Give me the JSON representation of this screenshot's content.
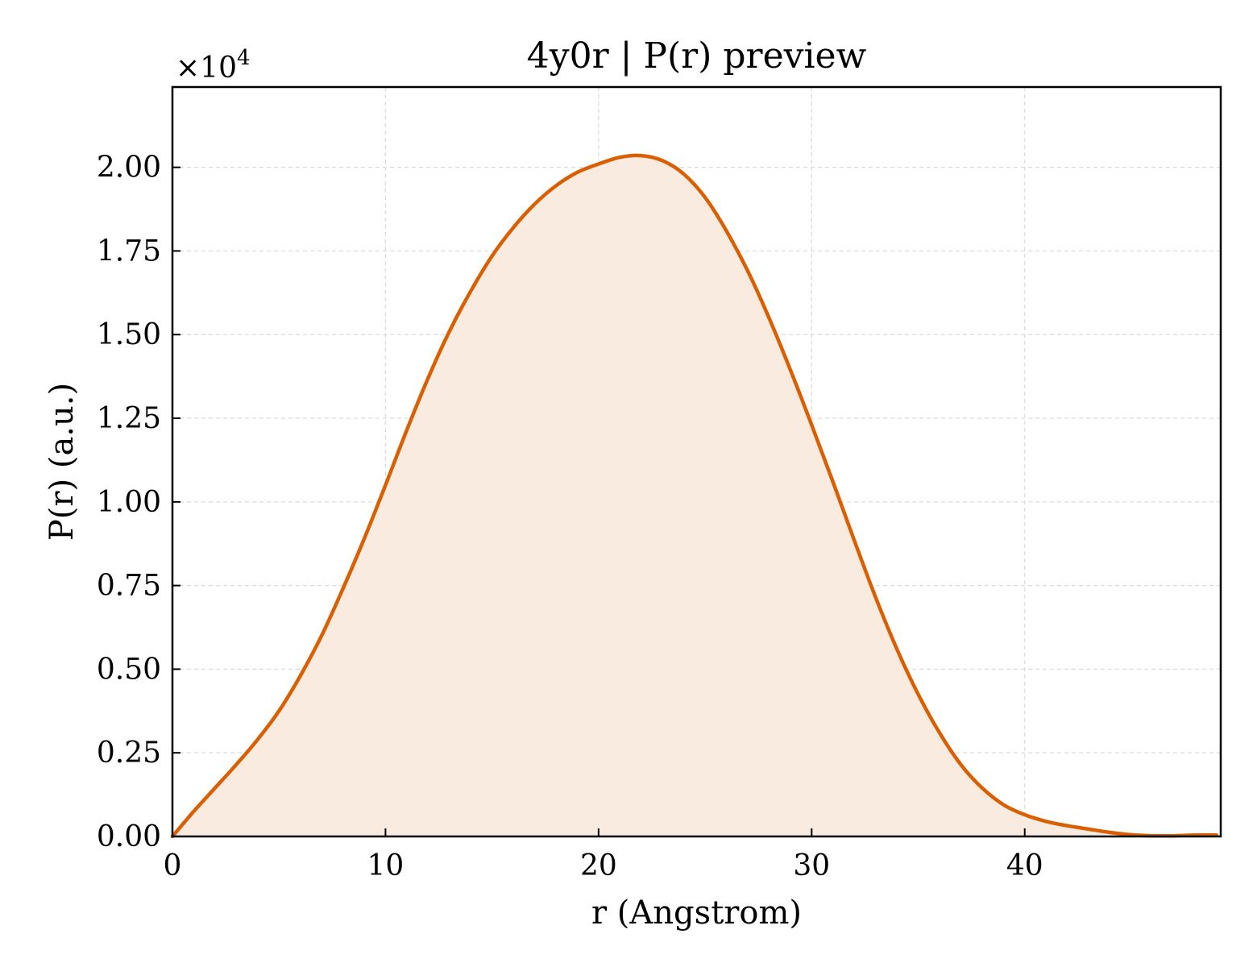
{
  "chart_data": {
    "type": "area",
    "title": "4y0r | P(r) preview",
    "xlabel": "r (Angstrom)",
    "ylabel": "P(r) (a.u.)",
    "y_scale_label": "×10",
    "y_scale_exponent": "4",
    "xlim": [
      0,
      49.2
    ],
    "ylim": [
      0,
      2.24
    ],
    "x_ticks": [
      0,
      10,
      20,
      30,
      40
    ],
    "x_tick_labels": [
      "0",
      "10",
      "20",
      "30",
      "40"
    ],
    "y_ticks": [
      0,
      0.25,
      0.5,
      0.75,
      1.0,
      1.25,
      1.5,
      1.75,
      2.0
    ],
    "y_tick_labels": [
      "0.00",
      "0.25",
      "0.50",
      "0.75",
      "1.00",
      "1.25",
      "1.50",
      "1.75",
      "2.00"
    ],
    "grid": true,
    "line_color": "#d95f02",
    "fill_color": "#f9ebe0",
    "series": [
      {
        "x": [
          0,
          1,
          2,
          3,
          4,
          5,
          6,
          7,
          8,
          9,
          10,
          11,
          12,
          13,
          14,
          15,
          16,
          17,
          18,
          19,
          20,
          21,
          22,
          23,
          24,
          25,
          26,
          27,
          28,
          29,
          30,
          31,
          32,
          33,
          34,
          35,
          36,
          37,
          38,
          39,
          40,
          41,
          42,
          43,
          44,
          45,
          46,
          47,
          48,
          49
        ],
        "values": [
          0.0,
          0.075,
          0.145,
          0.215,
          0.29,
          0.375,
          0.48,
          0.6,
          0.74,
          0.89,
          1.05,
          1.215,
          1.37,
          1.51,
          1.63,
          1.735,
          1.82,
          1.89,
          1.945,
          1.985,
          2.01,
          2.03,
          2.035,
          2.02,
          1.98,
          1.91,
          1.81,
          1.69,
          1.55,
          1.395,
          1.23,
          1.06,
          0.885,
          0.715,
          0.56,
          0.425,
          0.31,
          0.215,
          0.145,
          0.095,
          0.065,
          0.045,
          0.032,
          0.022,
          0.012,
          0.005,
          0.002,
          0.002,
          0.004,
          0.004
        ]
      }
    ]
  }
}
